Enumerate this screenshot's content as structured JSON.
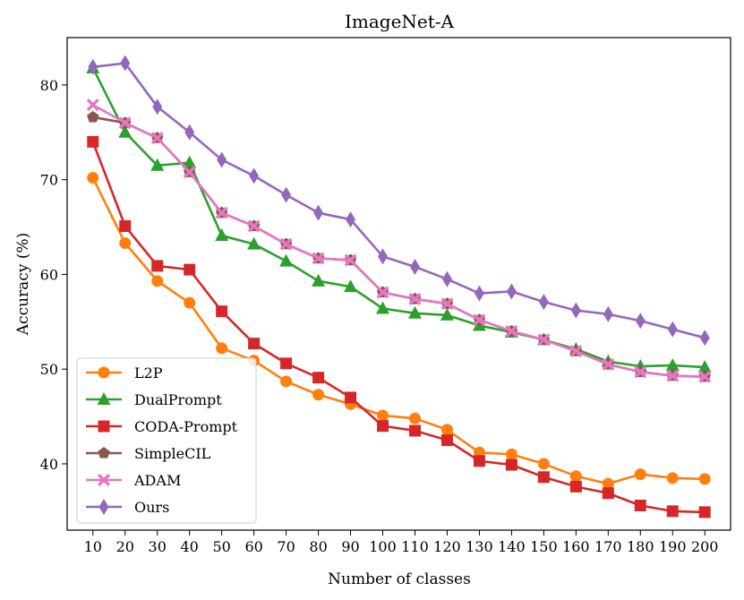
{
  "chart_data": {
    "type": "line",
    "title": "ImageNet-A",
    "xlabel": "Number of classes",
    "ylabel": "Accuracy (%)",
    "x": [
      10,
      20,
      30,
      40,
      50,
      60,
      70,
      80,
      90,
      100,
      110,
      120,
      130,
      140,
      150,
      160,
      170,
      180,
      190,
      200
    ],
    "xlim": [
      2,
      208
    ],
    "ylim": [
      33,
      85
    ],
    "yticks": [
      40,
      50,
      60,
      70,
      80
    ],
    "grid": false,
    "legend_position": "lower-left",
    "series": [
      {
        "name": "L2P",
        "color": "#ff7f0e",
        "marker": "circle",
        "values": [
          70.2,
          63.3,
          59.3,
          57.0,
          52.2,
          50.9,
          48.7,
          47.3,
          46.3,
          45.1,
          44.8,
          43.6,
          41.2,
          41.0,
          40.0,
          38.7,
          37.9,
          38.9,
          38.5,
          38.4
        ]
      },
      {
        "name": "DualPrompt",
        "color": "#2ca02c",
        "marker": "triangle",
        "values": [
          81.8,
          75.0,
          71.5,
          71.8,
          64.1,
          63.2,
          61.4,
          59.3,
          58.7,
          56.4,
          55.9,
          55.7,
          54.6,
          53.9,
          53.1,
          52.1,
          50.8,
          50.3,
          50.4,
          50.2
        ]
      },
      {
        "name": "CODA-Prompt",
        "color": "#d62728",
        "marker": "square",
        "values": [
          74.0,
          65.1,
          60.9,
          60.5,
          56.1,
          52.7,
          50.6,
          49.1,
          47.0,
          44.0,
          43.5,
          42.5,
          40.3,
          39.9,
          38.6,
          37.6,
          36.9,
          35.6,
          35.0,
          34.9
        ]
      },
      {
        "name": "SimpleCIL",
        "color": "#8c564b",
        "marker": "pentagon",
        "values": [
          76.6,
          76.0,
          74.4,
          70.8,
          66.5,
          65.1,
          63.2,
          61.7,
          61.5,
          58.1,
          57.4,
          56.9,
          55.2,
          54.0,
          53.1,
          51.9,
          50.5,
          49.7,
          49.3,
          49.2
        ]
      },
      {
        "name": "ADAM",
        "color": "#e377c2",
        "marker": "x-filled",
        "values": [
          77.9,
          76.0,
          74.4,
          70.8,
          66.5,
          65.1,
          63.2,
          61.7,
          61.5,
          58.1,
          57.4,
          56.9,
          55.2,
          54.0,
          53.1,
          51.9,
          50.5,
          49.7,
          49.3,
          49.2
        ]
      },
      {
        "name": "Ours",
        "color": "#9467bd",
        "marker": "diamond",
        "values": [
          81.9,
          82.3,
          77.7,
          75.0,
          72.1,
          70.4,
          68.4,
          66.5,
          65.8,
          61.9,
          60.8,
          59.5,
          58.0,
          58.2,
          57.1,
          56.2,
          55.8,
          55.1,
          54.2,
          53.3
        ]
      }
    ]
  }
}
